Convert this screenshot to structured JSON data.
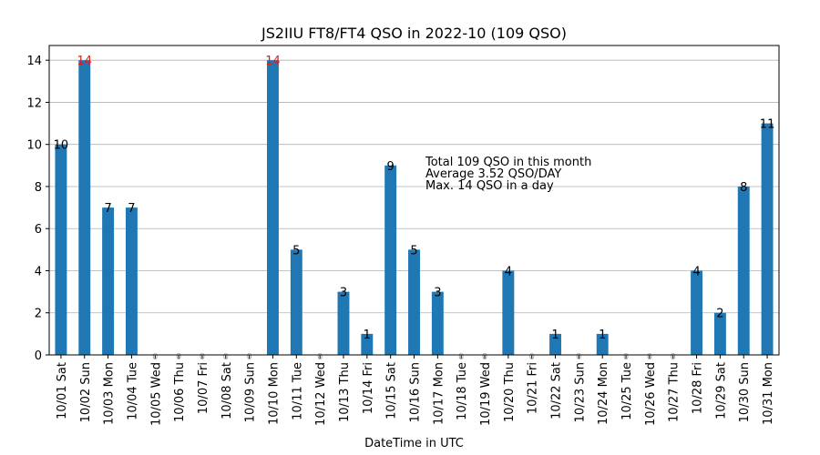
{
  "chart_data": {
    "type": "bar",
    "title": "JS2IIU FT8/FT4 QSO in 2022-10 (109 QSO)",
    "xlabel": "DateTime in UTC",
    "ylabel": "",
    "ylim": [
      0,
      14.7
    ],
    "yticks": [
      0,
      2,
      4,
      6,
      8,
      10,
      12,
      14
    ],
    "grid": "horizontal",
    "categories": [
      "10/01 Sat",
      "10/02 Sun",
      "10/03 Mon",
      "10/04 Tue",
      "10/05 Wed",
      "10/06 Thu",
      "10/07 Fri",
      "10/08 Sat",
      "10/09 Sun",
      "10/10 Mon",
      "10/11 Tue",
      "10/12 Wed",
      "10/13 Thu",
      "10/14 Fri",
      "10/15 Sat",
      "10/16 Sun",
      "10/17 Mon",
      "10/18 Tue",
      "10/19 Wed",
      "10/20 Thu",
      "10/21 Fri",
      "10/22 Sat",
      "10/23 Sun",
      "10/24 Mon",
      "10/25 Tue",
      "10/26 Wed",
      "10/27 Thu",
      "10/28 Fri",
      "10/29 Sat",
      "10/30 Sun",
      "10/31 Mon"
    ],
    "values": [
      10,
      14,
      7,
      7,
      0,
      0,
      0,
      0,
      0,
      14,
      5,
      0,
      3,
      1,
      9,
      5,
      3,
      0,
      0,
      4,
      0,
      1,
      0,
      1,
      0,
      0,
      0,
      4,
      2,
      8,
      11
    ],
    "bar_color": "#1f77b4",
    "max_label_color": "#e31a1c",
    "label_color": "#000000",
    "zero_label_color": "#aaaaaa",
    "annotation": [
      "Total 109 QSO in this month",
      "Average 3.52 QSO/DAY",
      "Max. 14 QSO in a day"
    ]
  }
}
